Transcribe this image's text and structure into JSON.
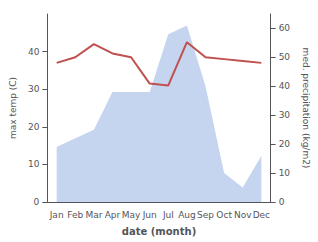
{
  "chart_data": {
    "type": "line",
    "xlabel": "date (month)",
    "ylabel": "max temp (C)",
    "y2label": "med. precipitation (kg/m2)",
    "categories": [
      "Jan",
      "Feb",
      "Mar",
      "Apr",
      "May",
      "Jun",
      "Jul",
      "Aug",
      "Sep",
      "Oct",
      "Nov",
      "Dec"
    ],
    "series": [
      {
        "type": "area",
        "axis": "y2",
        "color": "#c5d5f0",
        "values": [
          19,
          22,
          25,
          38,
          38,
          38,
          58,
          61,
          40,
          10,
          5,
          16
        ]
      },
      {
        "type": "line",
        "color": "#c0504d",
        "values": [
          37.0,
          38.5,
          42.0,
          39.5,
          38.5,
          31.5,
          31.0,
          42.5,
          38.5,
          38.0,
          37.5,
          37.0
        ]
      }
    ],
    "ylim": [
      0,
      50
    ],
    "yticks": [
      0,
      10,
      20,
      30,
      40
    ],
    "y2lim": [
      0,
      65
    ],
    "y2ticks": [
      0,
      10,
      20,
      30,
      40,
      50,
      60
    ],
    "grid": false
  }
}
